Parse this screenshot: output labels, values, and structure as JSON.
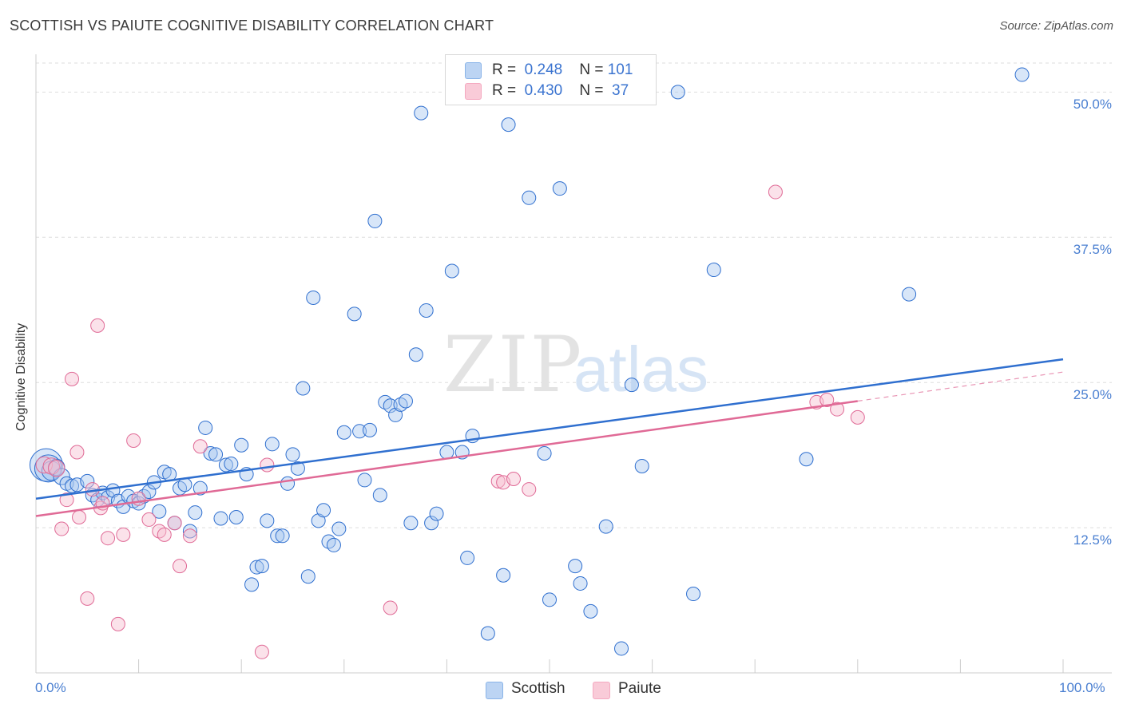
{
  "title": "SCOTTISH VS PAIUTE COGNITIVE DISABILITY CORRELATION CHART",
  "source": "Source: ZipAtlas.com",
  "watermark": {
    "zip": "ZIP",
    "atlas": "atlas"
  },
  "colors": {
    "blue": "#8ab4e8",
    "blue_line": "#2f6fcf",
    "pink": "#f4a9c0",
    "pink_line": "#e06a96",
    "tick_text": "#4a7fd1",
    "grid": "#dddddd"
  },
  "legend": {
    "rows": [
      {
        "r_label": "R =",
        "r_value": "0.248",
        "n_label": "N =",
        "n_value": "101"
      },
      {
        "r_label": "R =",
        "r_value": "0.430",
        "n_label": "N =",
        "n_value": " 37"
      }
    ]
  },
  "chart_data": {
    "type": "scatter",
    "title": "SCOTTISH VS PAIUTE COGNITIVE DISABILITY CORRELATION CHART",
    "xlabel": "",
    "ylabel": "Cognitive Disability",
    "xlim": [
      0,
      100
    ],
    "ylim": [
      0,
      52.5
    ],
    "x_tick_labels": [
      "0.0%",
      "100.0%"
    ],
    "y_ticks": [
      12.5,
      25.0,
      37.5,
      50.0
    ],
    "y_tick_labels": [
      "12.5%",
      "25.0%",
      "37.5%",
      "50.0%"
    ],
    "grid": true,
    "legend_position": "top-center",
    "series": [
      {
        "name": "Scottish",
        "r": 0.248,
        "n": 101,
        "trend": {
          "x0": 0,
          "y0": 15.0,
          "x1": 100,
          "y1": 27.0
        },
        "points": [
          [
            1.0,
            17.9,
            24
          ],
          [
            1.2,
            17.6,
            20
          ],
          [
            1.5,
            17.4,
            14
          ],
          [
            2.0,
            17.7,
            12
          ],
          [
            2.5,
            16.9,
            12
          ],
          [
            3.0,
            16.3,
            10
          ],
          [
            3.5,
            16.1,
            10
          ],
          [
            4.0,
            16.2,
            10
          ],
          [
            5.0,
            16.5,
            10
          ],
          [
            5.5,
            15.3,
            10
          ],
          [
            6.0,
            14.9,
            10
          ],
          [
            6.5,
            15.5,
            10
          ],
          [
            7.0,
            15.1,
            10
          ],
          [
            7.5,
            15.7,
            10
          ],
          [
            8.0,
            14.8,
            10
          ],
          [
            8.5,
            14.3,
            10
          ],
          [
            9.0,
            15.2,
            10
          ],
          [
            9.5,
            14.8,
            10
          ],
          [
            10.0,
            14.6,
            10
          ],
          [
            10.5,
            15.2,
            10
          ],
          [
            11.0,
            15.6,
            10
          ],
          [
            11.5,
            16.4,
            10
          ],
          [
            12.0,
            13.9,
            10
          ],
          [
            12.5,
            17.3,
            10
          ],
          [
            13.0,
            17.1,
            10
          ],
          [
            13.5,
            12.9,
            10
          ],
          [
            14.0,
            15.9,
            10
          ],
          [
            14.5,
            16.2,
            10
          ],
          [
            15.0,
            12.2,
            10
          ],
          [
            15.5,
            13.8,
            10
          ],
          [
            16.0,
            15.9,
            10
          ],
          [
            16.5,
            21.1,
            10
          ],
          [
            17.0,
            18.9,
            10
          ],
          [
            17.5,
            18.8,
            10
          ],
          [
            18.0,
            13.3,
            10
          ],
          [
            18.5,
            17.9,
            10
          ],
          [
            19.0,
            18.0,
            10
          ],
          [
            19.5,
            13.4,
            10
          ],
          [
            20.0,
            19.6,
            10
          ],
          [
            20.5,
            17.1,
            10
          ],
          [
            21.0,
            7.6,
            10
          ],
          [
            21.5,
            9.1,
            10
          ],
          [
            22.0,
            9.2,
            10
          ],
          [
            22.5,
            13.1,
            10
          ],
          [
            23.0,
            19.7,
            10
          ],
          [
            23.5,
            11.8,
            10
          ],
          [
            24.0,
            11.8,
            10
          ],
          [
            24.5,
            16.3,
            10
          ],
          [
            25.0,
            18.8,
            10
          ],
          [
            25.5,
            17.6,
            10
          ],
          [
            26.0,
            24.5,
            10
          ],
          [
            26.5,
            8.3,
            10
          ],
          [
            27.0,
            32.3,
            10
          ],
          [
            27.5,
            13.1,
            10
          ],
          [
            28.0,
            14.0,
            10
          ],
          [
            28.5,
            11.3,
            10
          ],
          [
            29.0,
            11.0,
            10
          ],
          [
            29.5,
            12.4,
            10
          ],
          [
            30.0,
            20.7,
            10
          ],
          [
            31.0,
            30.9,
            10
          ],
          [
            31.5,
            20.8,
            10
          ],
          [
            32.0,
            16.6,
            10
          ],
          [
            32.5,
            20.9,
            10
          ],
          [
            33.0,
            38.9,
            10
          ],
          [
            33.5,
            15.3,
            10
          ],
          [
            34.0,
            23.3,
            10
          ],
          [
            34.5,
            23.0,
            10
          ],
          [
            35.0,
            22.2,
            10
          ],
          [
            35.5,
            23.1,
            10
          ],
          [
            36.0,
            23.4,
            10
          ],
          [
            36.5,
            12.9,
            10
          ],
          [
            37.0,
            27.4,
            10
          ],
          [
            37.5,
            48.2,
            10
          ],
          [
            38.0,
            31.2,
            10
          ],
          [
            38.5,
            12.9,
            10
          ],
          [
            39.0,
            13.7,
            10
          ],
          [
            40.0,
            19.0,
            10
          ],
          [
            40.5,
            34.6,
            10
          ],
          [
            42.0,
            9.9,
            10
          ],
          [
            42.5,
            20.4,
            10
          ],
          [
            44.0,
            3.4,
            10
          ],
          [
            45.5,
            8.4,
            10
          ],
          [
            46.0,
            47.2,
            10
          ],
          [
            48.0,
            40.9,
            10
          ],
          [
            49.5,
            18.9,
            10
          ],
          [
            50.0,
            6.3,
            10
          ],
          [
            51.0,
            41.7,
            10
          ],
          [
            52.5,
            9.2,
            10
          ],
          [
            53.0,
            7.7,
            10
          ],
          [
            54.0,
            5.3,
            10
          ],
          [
            55.5,
            12.6,
            10
          ],
          [
            57.0,
            2.1,
            10
          ],
          [
            58.0,
            24.8,
            10
          ],
          [
            59.0,
            17.8,
            10
          ],
          [
            62.5,
            50.0,
            10
          ],
          [
            64.0,
            6.8,
            10
          ],
          [
            66.0,
            34.7,
            10
          ],
          [
            75.0,
            18.4,
            10
          ],
          [
            85.0,
            32.6,
            10
          ],
          [
            96.0,
            51.5,
            10
          ],
          [
            41.5,
            19.0,
            10
          ]
        ]
      },
      {
        "name": "Paiute",
        "r": 0.43,
        "n": 37,
        "trend": {
          "x0": 0,
          "y0": 13.5,
          "x1": 80,
          "y1": 23.4
        },
        "trend_dashed": {
          "x0": 80,
          "y0": 23.4,
          "x1": 100,
          "y1": 25.9
        },
        "points": [
          [
            0.8,
            17.9,
            12
          ],
          [
            1.5,
            17.8,
            12
          ],
          [
            2.0,
            17.6,
            12
          ],
          [
            2.5,
            12.4,
            10
          ],
          [
            3.0,
            14.9,
            10
          ],
          [
            3.5,
            25.3,
            10
          ],
          [
            4.0,
            19.0,
            10
          ],
          [
            4.2,
            13.4,
            10
          ],
          [
            5.0,
            6.4,
            10
          ],
          [
            5.5,
            15.8,
            10
          ],
          [
            6.0,
            29.9,
            10
          ],
          [
            6.3,
            14.2,
            10
          ],
          [
            6.5,
            14.6,
            10
          ],
          [
            7.0,
            11.6,
            10
          ],
          [
            8.0,
            4.2,
            10
          ],
          [
            8.5,
            11.9,
            10
          ],
          [
            9.5,
            20.0,
            10
          ],
          [
            10.0,
            15.0,
            10
          ],
          [
            11.0,
            13.2,
            10
          ],
          [
            12.0,
            12.2,
            10
          ],
          [
            12.5,
            11.9,
            10
          ],
          [
            13.5,
            12.9,
            10
          ],
          [
            14.0,
            9.2,
            10
          ],
          [
            15.0,
            11.8,
            10
          ],
          [
            16.0,
            19.5,
            10
          ],
          [
            22.0,
            1.8,
            10
          ],
          [
            22.5,
            17.9,
            10
          ],
          [
            34.5,
            5.6,
            10
          ],
          [
            45.0,
            16.5,
            10
          ],
          [
            45.5,
            16.4,
            10
          ],
          [
            46.5,
            16.7,
            10
          ],
          [
            48.0,
            15.8,
            10
          ],
          [
            72.0,
            41.4,
            10
          ],
          [
            76.0,
            23.3,
            10
          ],
          [
            77.0,
            23.5,
            10
          ],
          [
            78.0,
            22.7,
            10
          ],
          [
            80.0,
            22.0,
            10
          ]
        ]
      }
    ]
  }
}
